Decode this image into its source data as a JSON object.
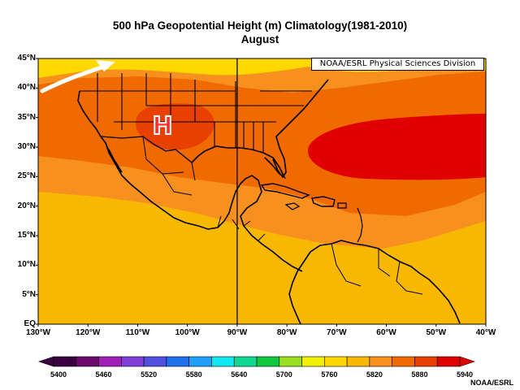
{
  "title": {
    "line1": "500 hPa Geopotential Height (m) Climatology(1981-2010)",
    "line2": "August"
  },
  "map": {
    "lon_range": [
      -130,
      -40
    ],
    "lat_range": [
      0,
      45
    ],
    "lat_labels": [
      "45°N",
      "40°N",
      "35°N",
      "30°N",
      "25°N",
      "20°N",
      "15°N",
      "10°N",
      "5°N",
      "EQ"
    ],
    "lon_labels": [
      "130°W",
      "120°W",
      "110°W",
      "100°W",
      "90°W",
      "80°W",
      "70°W",
      "60°W",
      "50°W",
      "40°W"
    ],
    "reference_meridian_lon": -90,
    "high_center": {
      "label": "H",
      "lon": -105,
      "lat": 33.5
    },
    "jet_arrow": {
      "color": "#ffffff"
    },
    "credit_box": "NOAA/ESRL Physical Sciences Division"
  },
  "colorbar": {
    "labels": [
      "5400",
      "5460",
      "5520",
      "5580",
      "5640",
      "5700",
      "5760",
      "5820",
      "5880",
      "5940"
    ],
    "colors": [
      "#3a0040",
      "#6a0a6a",
      "#a020b8",
      "#8040d8",
      "#5050e0",
      "#2070f0",
      "#1ea0f8",
      "#10e8f0",
      "#10d890",
      "#10c840",
      "#98e020",
      "#f0f000",
      "#ffd800",
      "#f8b800",
      "#f89020",
      "#f06a00",
      "#e84000",
      "#e00000"
    ]
  },
  "field_colors": {
    "c5760": "#ffd800",
    "c5820": "#f8b800",
    "c5850": "#f89020",
    "c5880": "#f06a00",
    "c5910": "#e84000",
    "c5940": "#e00000"
  },
  "credit_bottom": "NOAA/ESRL"
}
